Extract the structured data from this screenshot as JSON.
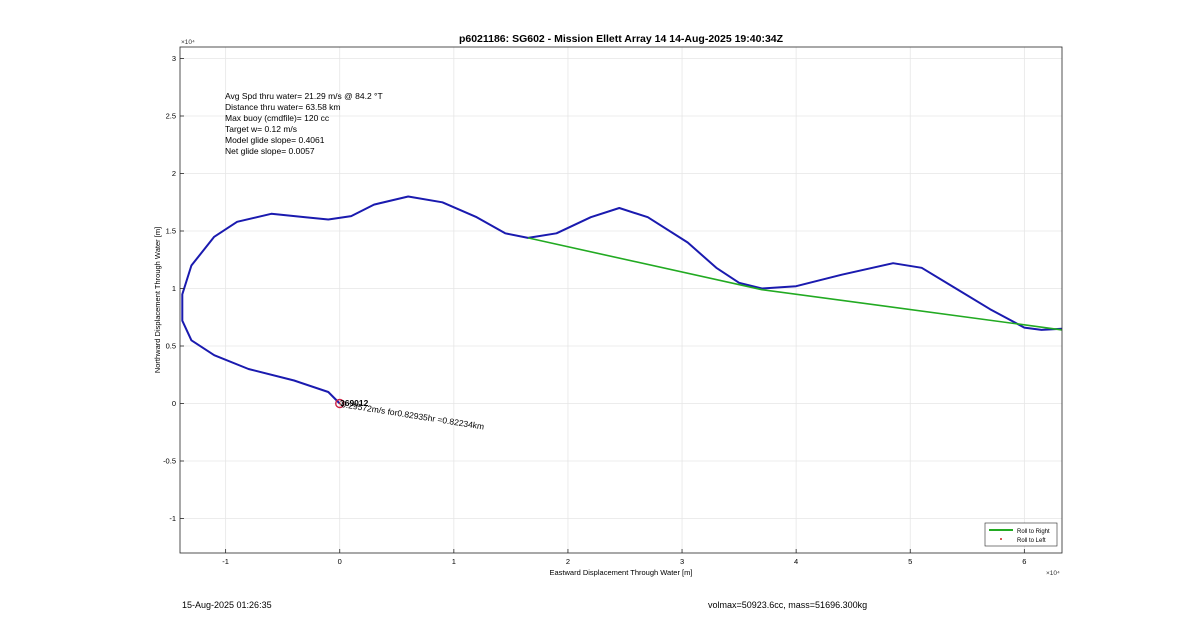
{
  "chart_data": {
    "type": "line",
    "title": "p6021186: SG602 - Mission Ellett Array 14 14-Aug-2025 19:40:34Z",
    "xlabel": "Eastward Displacement Through Water [m]",
    "ylabel": "Northward Displacement Through Water [m]",
    "x_exponent_label": "×10⁴",
    "y_exponent_label": "×10⁴",
    "xlim": [
      -1.4,
      6.33
    ],
    "ylim": [
      -1.3,
      3.1
    ],
    "x_ticks": [
      -1,
      0,
      1,
      2,
      3,
      4,
      5,
      6
    ],
    "y_ticks": [
      -1,
      -0.5,
      0,
      0.5,
      1,
      1.5,
      2,
      2.5,
      3
    ],
    "x_tick_labels": [
      "-1",
      "0",
      "1",
      "2",
      "3",
      "4",
      "5",
      "6"
    ],
    "y_tick_labels": [
      "-1",
      "-0.5",
      "0",
      "0.5",
      "1",
      "1.5",
      "2",
      "2.5",
      "3"
    ],
    "units_note": "axis values in units of 10^4 m",
    "grid": true,
    "legend_position": "bottom-right",
    "colors": {
      "track": "#1a1aaf",
      "roll_right": "#22aa22",
      "roll_left": "#cc2222",
      "grid": "#e6e6e6",
      "axis": "#262626"
    },
    "annotations": [
      "Avg Spd thru water= 21.29 m/s @  84.2 °T",
      "Distance thru water= 63.58 km",
      "Max buoy (cmdfile)= 120 cc",
      "Target w= 0.12 m/s",
      "Model glide slope= 0.4061",
      "Net glide slope= 0.0057"
    ],
    "point_label": "0.29572m/s for0.82935hr =0.82234km",
    "point_label_overlap": "369012",
    "series": [
      {
        "name": "Roll to Right",
        "style": "line",
        "x": [
          1.65,
          3.7,
          6.33
        ],
        "y": [
          1.44,
          0.99,
          0.64
        ]
      },
      {
        "name": "Roll to Left",
        "style": "marker",
        "x": [
          0.0
        ],
        "y": [
          0.0
        ]
      },
      {
        "name": "",
        "style": "line",
        "x": [
          0.0,
          -0.1,
          -0.4,
          -0.8,
          -1.1,
          -1.3,
          -1.38,
          -1.38,
          -1.3,
          -1.1,
          -0.9,
          -0.6,
          -0.3,
          -0.1,
          0.1,
          0.3,
          0.6,
          0.9,
          1.2,
          1.45,
          1.65,
          1.9,
          2.2,
          2.45,
          2.7,
          3.05,
          3.3,
          3.5,
          3.7,
          4.0,
          4.4,
          4.85,
          5.1,
          5.4,
          5.7,
          6.0,
          6.15,
          6.33
        ],
        "y": [
          0.0,
          0.1,
          0.2,
          0.3,
          0.42,
          0.55,
          0.72,
          0.95,
          1.2,
          1.45,
          1.58,
          1.65,
          1.62,
          1.6,
          1.63,
          1.73,
          1.8,
          1.75,
          1.62,
          1.48,
          1.44,
          1.48,
          1.62,
          1.7,
          1.62,
          1.4,
          1.18,
          1.05,
          1.0,
          1.02,
          1.12,
          1.22,
          1.18,
          1.0,
          0.82,
          0.66,
          0.64,
          0.65
        ]
      }
    ]
  },
  "footer": {
    "timestamp": "15-Aug-2025 01:26:35",
    "summary": "volmax=50923.6cc, mass=51696.300kg"
  }
}
